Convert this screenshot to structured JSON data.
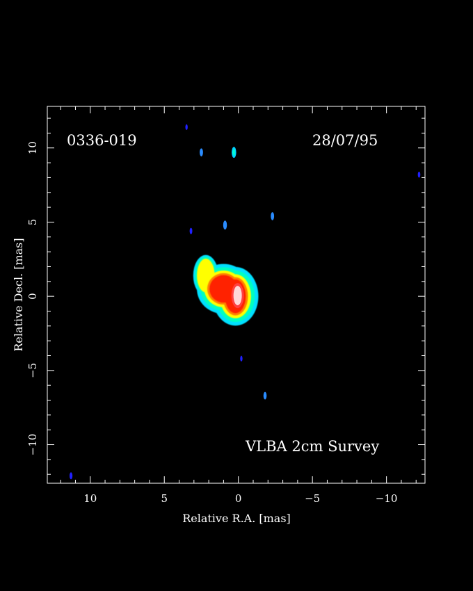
{
  "chart_data": {
    "type": "heatmap",
    "source_name": "0336-019",
    "date": "28/07/95",
    "survey": "VLBA 2cm Survey",
    "xlabel": "Relative R.A. [mas]",
    "ylabel": "Relative Decl. [mas]",
    "xlim": [
      12.9,
      -12.6
    ],
    "ylim": [
      -12.6,
      12.8
    ],
    "x_ticks": [
      10,
      5,
      0,
      -5,
      -10
    ],
    "x_tick_labels": [
      "10",
      "5",
      "0",
      "−5",
      "−10"
    ],
    "y_ticks": [
      10,
      5,
      0,
      -5,
      -10
    ],
    "y_tick_labels": [
      "10",
      "5",
      "0",
      "−5",
      "−10"
    ],
    "background_color": "#000000",
    "colormap": [
      "#1010ff",
      "#00e0ff",
      "#00ffc0",
      "#ffff00",
      "#ff8000",
      "#ff2000",
      "#ffd0d0"
    ],
    "components": [
      {
        "ra": 2.0,
        "dec": 1.0,
        "level": 0.25
      },
      {
        "ra": 1.0,
        "dec": 0.5,
        "level": 0.55
      },
      {
        "ra": 0.0,
        "dec": 0.0,
        "level": 1.0
      }
    ],
    "noise_blobs": [
      {
        "ra": 3.5,
        "dec": 11.4,
        "level": 0.08
      },
      {
        "ra": 2.5,
        "dec": 9.7,
        "level": 0.2
      },
      {
        "ra": 0.3,
        "dec": 9.7,
        "level": 0.35
      },
      {
        "ra": -12.2,
        "dec": 8.2,
        "level": 0.1
      },
      {
        "ra": -2.3,
        "dec": 5.4,
        "level": 0.2
      },
      {
        "ra": 0.9,
        "dec": 4.8,
        "level": 0.25
      },
      {
        "ra": 3.2,
        "dec": 4.4,
        "level": 0.12
      },
      {
        "ra": -0.2,
        "dec": -4.2,
        "level": 0.08
      },
      {
        "ra": -1.8,
        "dec": -6.7,
        "level": 0.18
      },
      {
        "ra": 11.3,
        "dec": -12.1,
        "level": 0.15
      }
    ]
  }
}
